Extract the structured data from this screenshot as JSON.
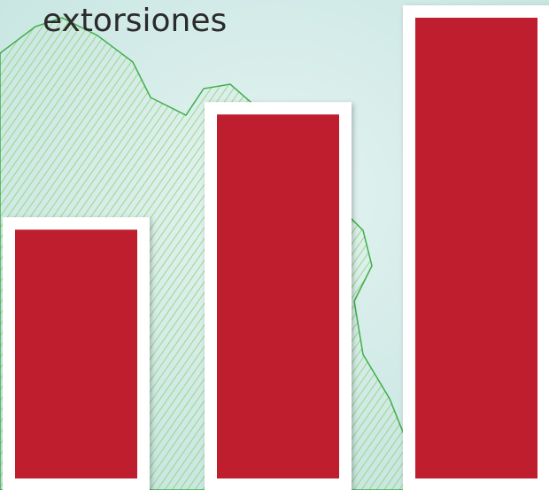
{
  "chart_data": {
    "type": "bar",
    "title": "extorsiones",
    "categories": [
      null,
      null,
      null
    ],
    "values": [
      54,
      79,
      100
    ],
    "color": "#be1e2d",
    "ylim": [
      0,
      100
    ]
  }
}
